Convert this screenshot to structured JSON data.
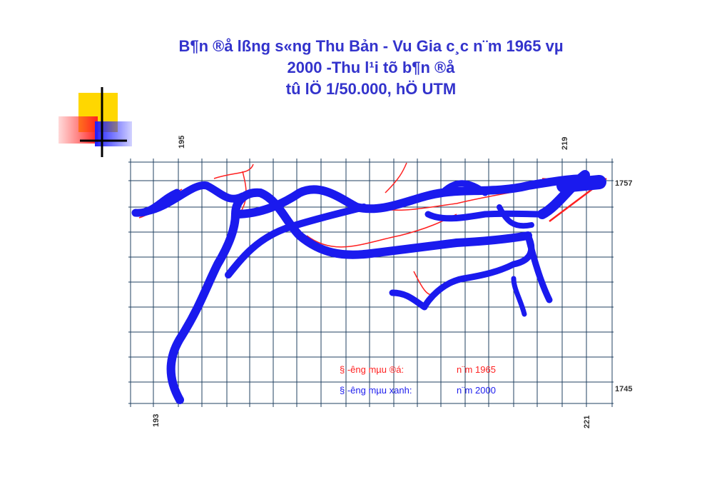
{
  "title": {
    "lines": [
      "B¶n ®å lßng s«ng Thu Bản - Vu Gia c¸c n¨m 1965 vµ",
      "2000 -Thu l¹i tõ b¶n ®å",
      "tû lÖ 1/50.000, hÖ UTM"
    ]
  },
  "map": {
    "coordinates": {
      "top_left": "195",
      "top_right": "219",
      "bottom_left": "193",
      "bottom_right": "221",
      "right_top": "1757",
      "right_bottom": "1745"
    },
    "legend": [
      {
        "label": "§ -êng mµu ®á:",
        "year": "n¨m 1965",
        "color": "#ff2020"
      },
      {
        "label": "§ -êng mµu xanh:",
        "year": "n¨m 2000",
        "color": "#2020ee"
      }
    ]
  }
}
